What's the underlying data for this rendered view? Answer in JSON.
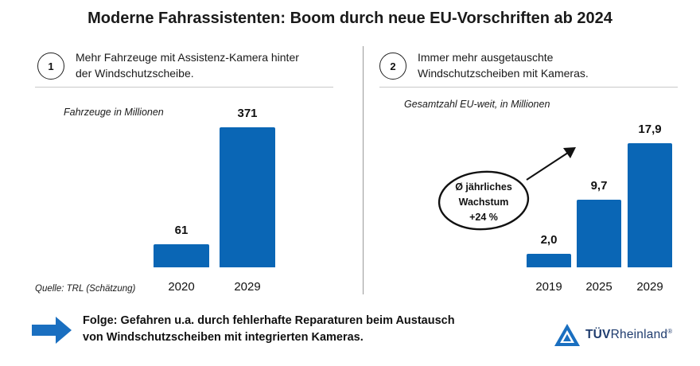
{
  "title": "Moderne Fahrassistenten: Boom durch neue EU-Vorschriften ab 2024",
  "colors": {
    "bar": "#0a66b5",
    "logo": "#1f3c6e",
    "arrow": "#1a6fc0"
  },
  "panel1": {
    "number": "1",
    "heading_line1": "Mehr Fahrzeuge mit Assistenz-Kamera hinter",
    "heading_line2": "der Windschutzscheibe."
  },
  "panel2": {
    "number": "2",
    "heading_line1": "Immer mehr ausgetauschte",
    "heading_line2": "Windschutzscheiben mit Kameras."
  },
  "growth_badge": {
    "line1": "Ø jährliches",
    "line2": "Wachstum",
    "line3": "+24 %"
  },
  "source": "Quelle: TRL (Schätzung)",
  "footer": {
    "icon": "right-arrow-icon",
    "line1": "Folge: Gefahren u.a. durch fehlerhafte Reparaturen beim Austausch",
    "line2": "von Windschutzscheiben mit integrierten Kameras."
  },
  "logo": {
    "icon": "tuv-triangle-icon",
    "brand_bold": "TÜV",
    "brand_regular": "Rheinland",
    "reg": "®"
  },
  "chart_data": [
    {
      "type": "bar",
      "unit_label": "Fahrzeuge in Millionen",
      "categories": [
        "2020",
        "2029"
      ],
      "values": [
        61,
        371
      ],
      "value_labels": [
        "61",
        "371"
      ],
      "ylim": [
        0,
        371
      ],
      "grid": false
    },
    {
      "type": "bar",
      "unit_label": "Gesamtzahl EU-weit, in Millionen",
      "categories": [
        "2019",
        "2025",
        "2029"
      ],
      "values": [
        2.0,
        9.7,
        17.9
      ],
      "value_labels": [
        "2,0",
        "9,7",
        "17,9"
      ],
      "ylim": [
        0,
        17.9
      ],
      "grid": false
    }
  ]
}
